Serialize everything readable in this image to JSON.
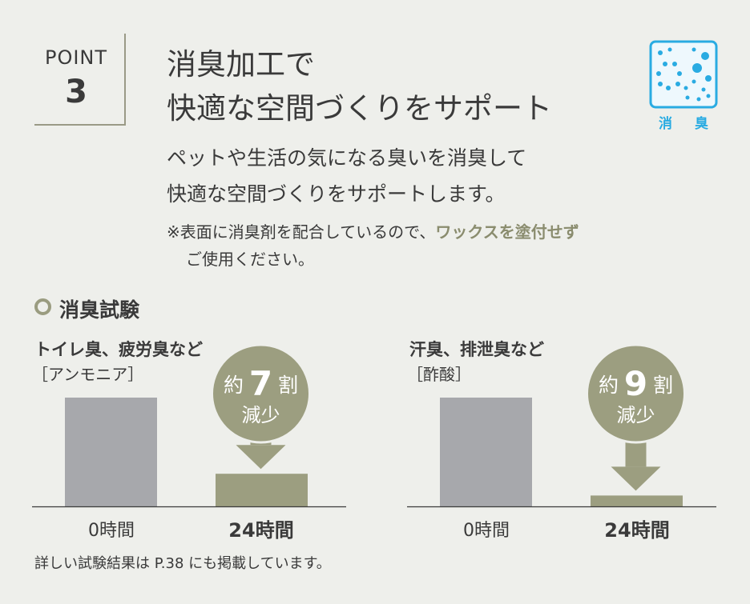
{
  "header": {
    "point_label": "POINT",
    "point_number": "3",
    "title_line1": "消臭加工で",
    "title_line2": "快適な空間づくりをサポート"
  },
  "badge": {
    "icon": "deodorize-icon",
    "label_left": "消",
    "label_right": "臭",
    "color": "#29abe2"
  },
  "lead": {
    "line1": "ペットや生活の気になる臭いを消臭して",
    "line2": "快適な空間づくりをサポートします。"
  },
  "note": {
    "prefix": "※表面に消臭剤を配合しているので、",
    "highlight": "ワックスを塗付せず",
    "line2": "ご使用ください。"
  },
  "section": {
    "title": "消臭試験"
  },
  "chart_data": [
    {
      "type": "bar",
      "title": "トイレ臭、疲労臭など",
      "subtitle": "［アンモニア］",
      "categories": [
        "0時間",
        "24時間"
      ],
      "values": [
        100,
        30
      ],
      "colors": [
        "#a7a8ac",
        "#9c9e80"
      ],
      "callout": {
        "prefix": "約",
        "number": "7",
        "suffix": "割",
        "text": "減少"
      }
    },
    {
      "type": "bar",
      "title": "汗臭、排泄臭など",
      "subtitle": "［酢酸］",
      "categories": [
        "0時間",
        "24時間"
      ],
      "values": [
        100,
        10
      ],
      "colors": [
        "#a7a8ac",
        "#9c9e80"
      ],
      "callout": {
        "prefix": "約",
        "number": "9",
        "suffix": "割",
        "text": "減少"
      }
    }
  ],
  "footer": {
    "text": "詳しい試験結果は P.38 にも掲載しています。"
  }
}
